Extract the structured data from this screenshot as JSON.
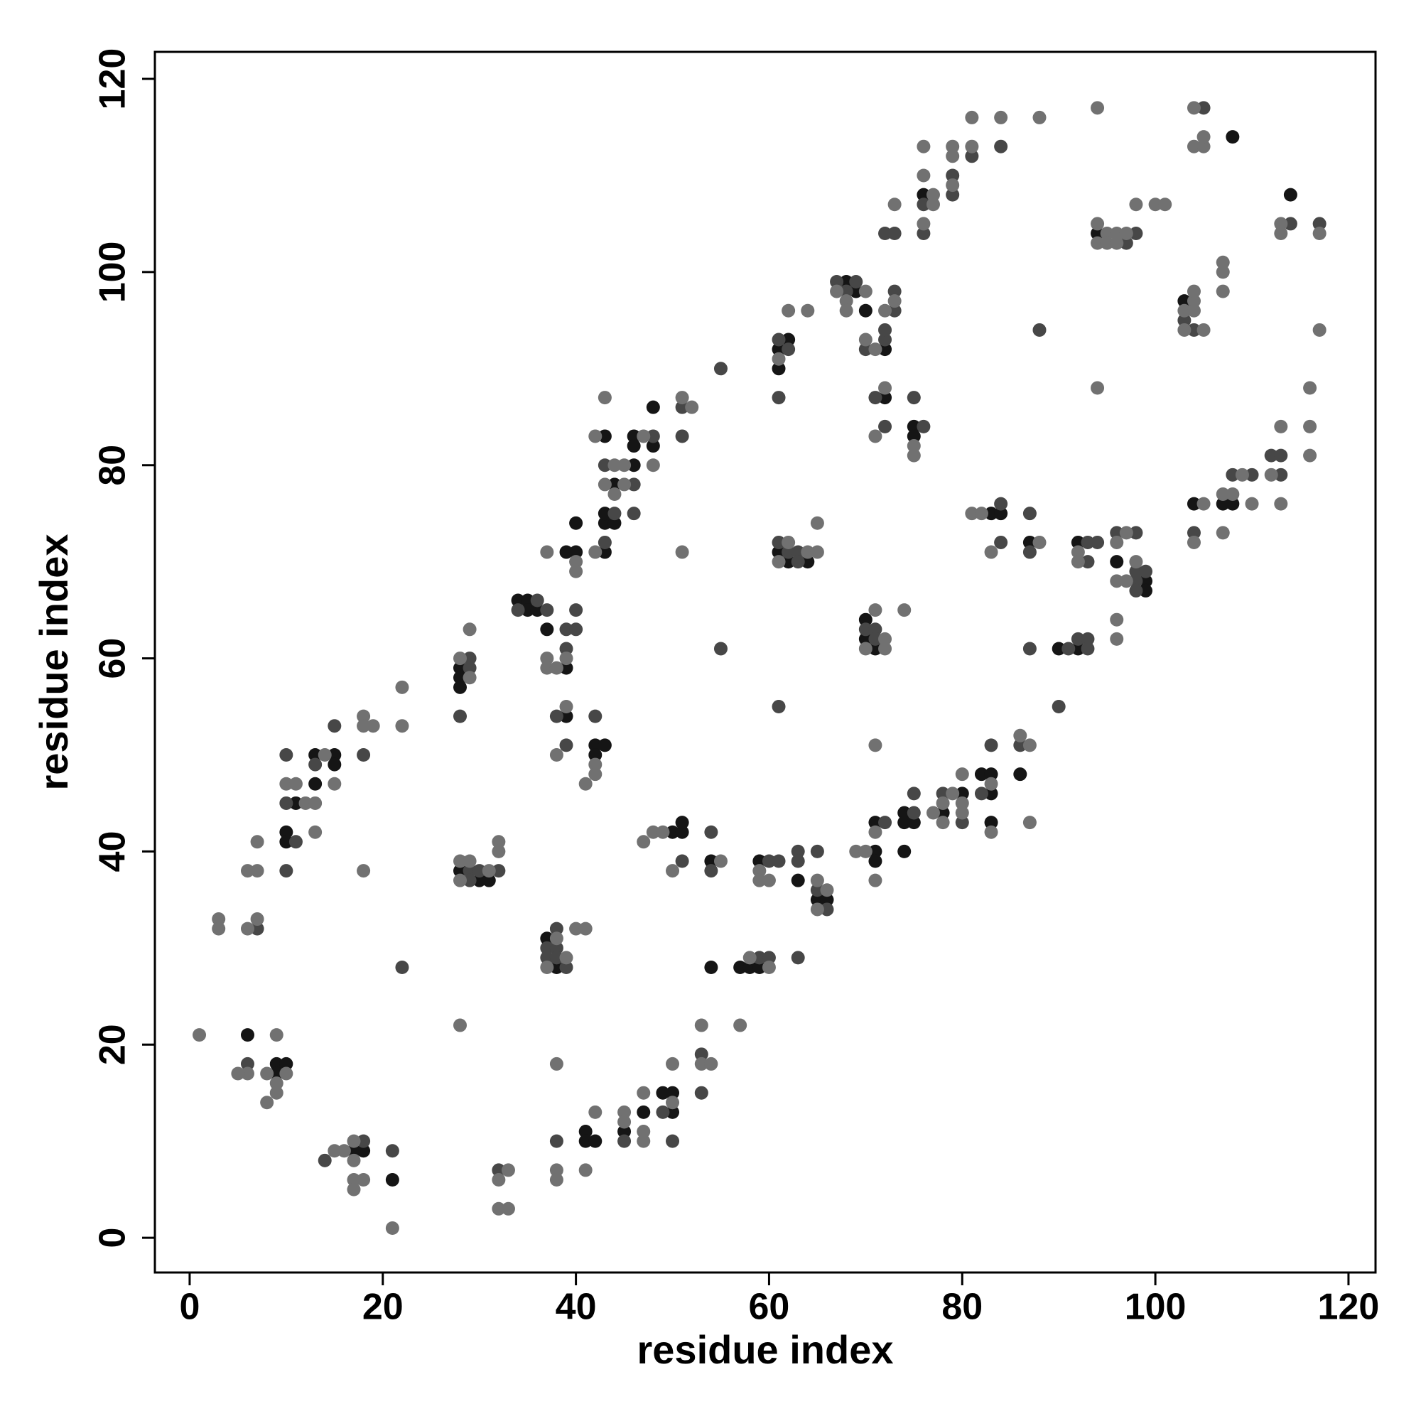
{
  "chart_data": {
    "type": "scatter",
    "x_label": "residue index",
    "y_label": "residue index",
    "xlim": [
      -3.6,
      122.8
    ],
    "ylim": [
      -3.6,
      122.8
    ],
    "xticks": [
      0,
      20,
      40,
      60,
      80,
      100,
      120
    ],
    "yticks": [
      0,
      20,
      40,
      60,
      80,
      100,
      120
    ],
    "grid": false,
    "series": [
      {
        "color": "#151515",
        "x": [
          6,
          9,
          9,
          10,
          11,
          10,
          10,
          13,
          15,
          15,
          13,
          17,
          18,
          21,
          28,
          28,
          28,
          28,
          30,
          31,
          34,
          35,
          35,
          36,
          37,
          39,
          40,
          39,
          39,
          37,
          38,
          41,
          41,
          42,
          40,
          43,
          43,
          43,
          44,
          44,
          43,
          46,
          46,
          48,
          46,
          48,
          42,
          43,
          42,
          45,
          47,
          49,
          50,
          50,
          50,
          51,
          51,
          54,
          54,
          57,
          58,
          59,
          59,
          62,
          61,
          61,
          61,
          62,
          64,
          63,
          65,
          66,
          68,
          69,
          70,
          72,
          72,
          70,
          70,
          71,
          71,
          71,
          71,
          74,
          74,
          75,
          74,
          75,
          75,
          76,
          78,
          80,
          83,
          84,
          87,
          82,
          83,
          83,
          83,
          86,
          90,
          92,
          92,
          94,
          96,
          99,
          99,
          103,
          108,
          104,
          107,
          108,
          114
        ],
        "y": [
          21,
          18,
          17,
          18,
          45,
          42,
          41,
          50,
          50,
          49,
          47,
          9,
          9,
          6,
          59,
          58,
          57,
          38,
          37,
          37,
          66,
          66,
          65,
          65,
          63,
          59,
          71,
          71,
          54,
          31,
          28,
          11,
          10,
          10,
          74,
          71,
          74,
          75,
          74,
          78,
          83,
          83,
          82,
          82,
          80,
          86,
          51,
          51,
          50,
          11,
          13,
          15,
          15,
          13,
          42,
          42,
          43,
          39,
          28,
          28,
          28,
          28,
          39,
          93,
          92,
          90,
          71,
          70,
          70,
          37,
          35,
          35,
          99,
          98,
          96,
          92,
          87,
          64,
          62,
          61,
          43,
          40,
          39,
          44,
          43,
          43,
          40,
          84,
          83,
          108,
          44,
          46,
          75,
          75,
          72,
          48,
          48,
          46,
          43,
          48,
          61,
          61,
          72,
          104,
          70,
          68,
          67,
          97,
          114,
          76,
          76,
          76,
          108
        ]
      },
      {
        "color": "#474747",
        "x": [
          7,
          6,
          10,
          10,
          11,
          10,
          13,
          15,
          18,
          22,
          14,
          18,
          21,
          29,
          29,
          28,
          29,
          30,
          32,
          29,
          32,
          34,
          36,
          37,
          39,
          39,
          40,
          40,
          38,
          39,
          38,
          37,
          38,
          37,
          38,
          39,
          38,
          43,
          44,
          43,
          48,
          46,
          46,
          42,
          45,
          49,
          50,
          51,
          51,
          51,
          53,
          53,
          54,
          54,
          55,
          55,
          59,
          60,
          60,
          61,
          61,
          62,
          61,
          61,
          62,
          63,
          63,
          61,
          63,
          63,
          65,
          63,
          65,
          66,
          67,
          69,
          68,
          70,
          72,
          72,
          73,
          73,
          71,
          72,
          72,
          73,
          70,
          71,
          71,
          72,
          75,
          75,
          75,
          76,
          76,
          76,
          78,
          80,
          79,
          79,
          81,
          84,
          84,
          84,
          82,
          83,
          86,
          87,
          87,
          87,
          88,
          91,
          92,
          93,
          93,
          90,
          93,
          94,
          93,
          98,
          97,
          96,
          98,
          98,
          98,
          99,
          98,
          103,
          104,
          105,
          104,
          108,
          110,
          112,
          113,
          113,
          114,
          117
        ],
        "y": [
          32,
          18,
          50,
          45,
          41,
          38,
          49,
          53,
          50,
          28,
          8,
          10,
          9,
          60,
          59,
          54,
          38,
          38,
          38,
          37,
          7,
          65,
          66,
          65,
          61,
          63,
          63,
          65,
          54,
          51,
          32,
          30,
          30,
          29,
          29,
          28,
          10,
          72,
          75,
          80,
          83,
          78,
          75,
          54,
          10,
          13,
          10,
          86,
          83,
          39,
          19,
          15,
          42,
          38,
          90,
          61,
          29,
          29,
          39,
          39,
          93,
          92,
          87,
          72,
          71,
          71,
          70,
          55,
          40,
          39,
          40,
          29,
          36,
          34,
          99,
          99,
          98,
          92,
          93,
          94,
          96,
          98,
          87,
          84,
          104,
          104,
          63,
          63,
          62,
          43,
          44,
          46,
          87,
          84,
          107,
          104,
          46,
          43,
          110,
          108,
          112,
          113,
          76,
          72,
          46,
          51,
          51,
          75,
          71,
          61,
          94,
          61,
          62,
          62,
          61,
          55,
          72,
          72,
          70,
          104,
          103,
          73,
          73,
          68,
          69,
          69,
          67,
          95,
          94,
          117,
          73,
          79,
          79,
          81,
          81,
          79,
          105,
          105
        ]
      },
      {
        "color": "#717171",
        "x": [
          1,
          3,
          3,
          6,
          7,
          7,
          6,
          7,
          6,
          5,
          9,
          10,
          9,
          9,
          8,
          8,
          10,
          11,
          12,
          13,
          14,
          15,
          13,
          18,
          18,
          19,
          18,
          22,
          22,
          15,
          16,
          17,
          17,
          17,
          17,
          18,
          21,
          28,
          28,
          29,
          29,
          28,
          29,
          31,
          28,
          32,
          32,
          33,
          32,
          32,
          33,
          37,
          37,
          37,
          38,
          39,
          40,
          40,
          39,
          38,
          38,
          37,
          39,
          40,
          41,
          38,
          38,
          38,
          41,
          42,
          42,
          43,
          44,
          45,
          44,
          45,
          42,
          43,
          47,
          48,
          42,
          42,
          41,
          45,
          45,
          47,
          47,
          47,
          50,
          50,
          47,
          48,
          49,
          50,
          51,
          52,
          51,
          53,
          53,
          54,
          55,
          57,
          58,
          60,
          59,
          59,
          60,
          61,
          62,
          64,
          62,
          61,
          64,
          65,
          65,
          65,
          66,
          65,
          67,
          68,
          68,
          70,
          70,
          71,
          72,
          73,
          72,
          71,
          73,
          72,
          70,
          72,
          71,
          74,
          71,
          69,
          70,
          71,
          71,
          77,
          75,
          75,
          77,
          77,
          76,
          76,
          76,
          79,
          78,
          78,
          80,
          80,
          80,
          79,
          79,
          79,
          81,
          81,
          84,
          88,
          81,
          82,
          83,
          83,
          83,
          86,
          87,
          87,
          88,
          92,
          92,
          94,
          95,
          96,
          97,
          94,
          95,
          96,
          94,
          94,
          98,
          100,
          101,
          97,
          96,
          96,
          97,
          98,
          96,
          96,
          104,
          103,
          104,
          103,
          105,
          104,
          104,
          104,
          105,
          105,
          105,
          104,
          107,
          108,
          107,
          109,
          110,
          107,
          107,
          107,
          112,
          113,
          113,
          113,
          113,
          117,
          117,
          116,
          116,
          116
        ],
        "y": [
          21,
          33,
          32,
          38,
          38,
          41,
          32,
          33,
          17,
          17,
          21,
          17,
          16,
          15,
          17,
          14,
          47,
          47,
          45,
          45,
          50,
          47,
          42,
          54,
          53,
          53,
          38,
          57,
          53,
          9,
          9,
          10,
          8,
          6,
          5,
          6,
          1,
          22,
          60,
          58,
          63,
          39,
          39,
          38,
          37,
          41,
          40,
          7,
          6,
          3,
          3,
          71,
          60,
          59,
          59,
          60,
          70,
          69,
          55,
          50,
          31,
          28,
          29,
          32,
          32,
          18,
          7,
          6,
          7,
          13,
          71,
          78,
          80,
          80,
          77,
          78,
          83,
          87,
          83,
          80,
          49,
          48,
          47,
          13,
          12,
          15,
          11,
          10,
          14,
          18,
          41,
          42,
          42,
          38,
          87,
          86,
          71,
          22,
          18,
          18,
          39,
          22,
          29,
          28,
          38,
          37,
          37,
          91,
          96,
          96,
          72,
          70,
          71,
          74,
          71,
          37,
          36,
          34,
          98,
          97,
          96,
          98,
          93,
          92,
          96,
          97,
          88,
          83,
          107,
          62,
          61,
          61,
          65,
          65,
          51,
          40,
          40,
          42,
          37,
          44,
          82,
          81,
          108,
          107,
          105,
          110,
          113,
          46,
          45,
          43,
          45,
          44,
          48,
          113,
          112,
          109,
          113,
          116,
          116,
          116,
          75,
          75,
          71,
          47,
          42,
          52,
          51,
          43,
          72,
          71,
          70,
          105,
          104,
          104,
          104,
          103,
          103,
          103,
          117,
          88,
          107,
          107,
          107,
          73,
          72,
          68,
          68,
          70,
          64,
          62,
          97,
          96,
          96,
          94,
          94,
          98,
          117,
          113,
          113,
          114,
          76,
          72,
          77,
          77,
          73,
          79,
          76,
          101,
          100,
          98,
          79,
          76,
          84,
          105,
          104,
          104,
          94,
          88,
          84,
          81
        ]
      }
    ]
  }
}
